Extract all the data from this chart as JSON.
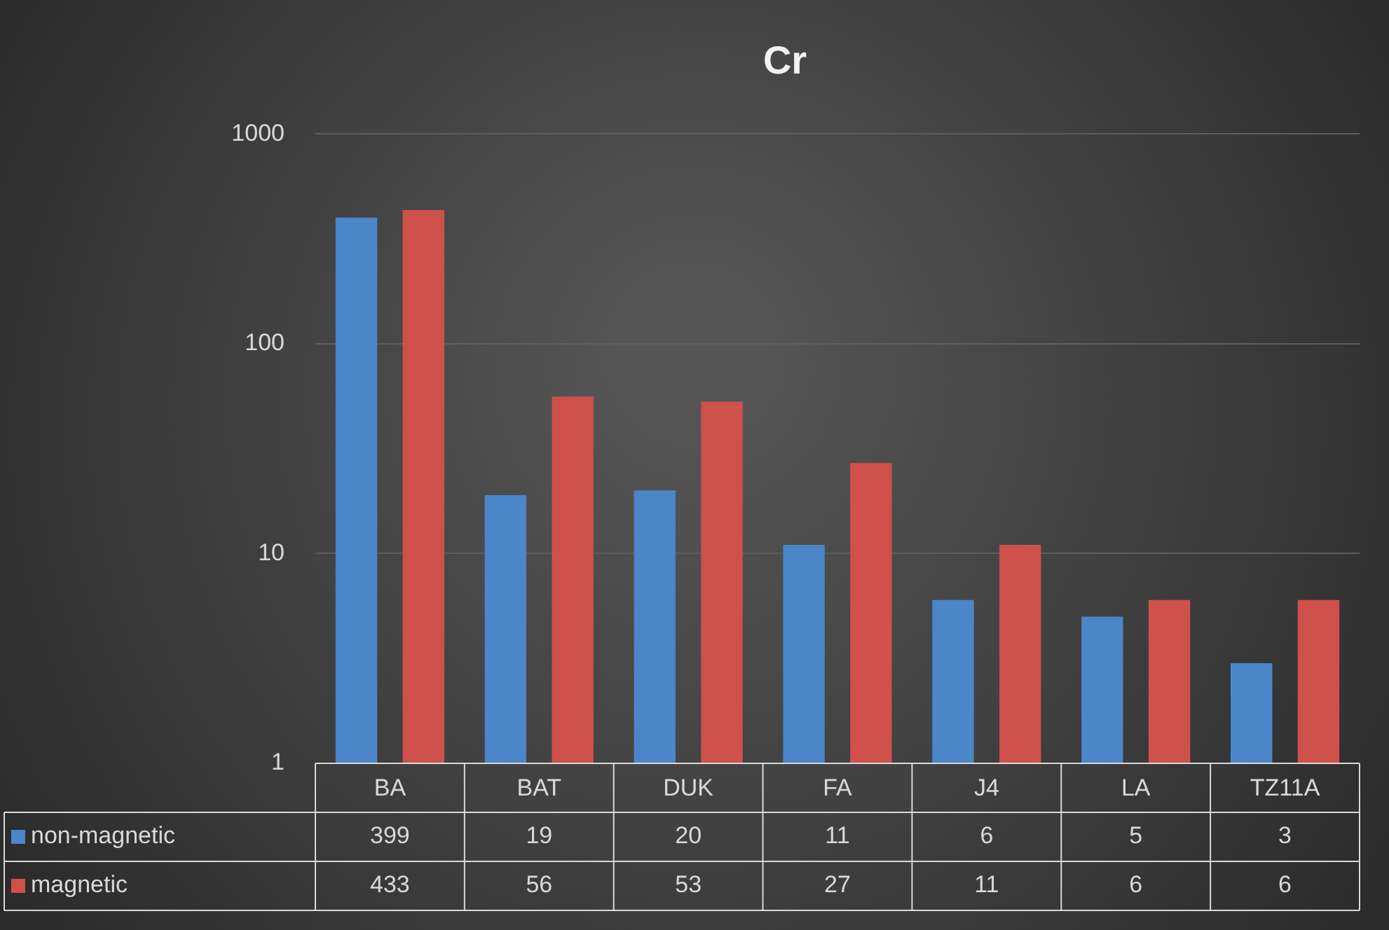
{
  "chart_data": {
    "type": "bar",
    "title": "Cr",
    "categories": [
      "BA",
      "BAT",
      "DUK",
      "FA",
      "J4",
      "LA",
      "TZ11A"
    ],
    "series": [
      {
        "name": "non-magnetic",
        "color": "#4a86c8",
        "values": [
          399,
          19,
          20,
          11,
          6,
          5,
          3
        ]
      },
      {
        "name": "magnetic",
        "color": "#d0504c",
        "values": [
          433,
          56,
          53,
          27,
          11,
          6,
          6
        ]
      }
    ],
    "log": true,
    "ylim": [
      1,
      1000
    ],
    "yticks": [
      1,
      10,
      100,
      1000
    ],
    "grid": "y",
    "legend": "bottom",
    "data_labels": true
  }
}
